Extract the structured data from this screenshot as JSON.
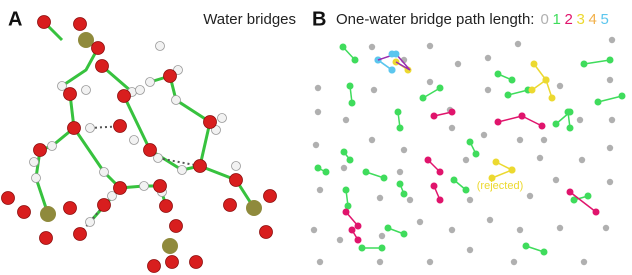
{
  "panel_a": {
    "label": "A",
    "title": "Water bridges"
  },
  "panel_b": {
    "label": "B",
    "title": "One-water bridge path length:",
    "legend": [
      {
        "label": "0",
        "color": "#b0b0b0"
      },
      {
        "label": "1",
        "color": "#3fdc5c"
      },
      {
        "label": "2",
        "color": "#e0146c"
      },
      {
        "label": "3",
        "color": "#ecd930"
      },
      {
        "label": "4",
        "color": "#f2b04a"
      },
      {
        "label": "5",
        "color": "#5cc6ee"
      }
    ],
    "annotation": "(rejected)"
  }
}
